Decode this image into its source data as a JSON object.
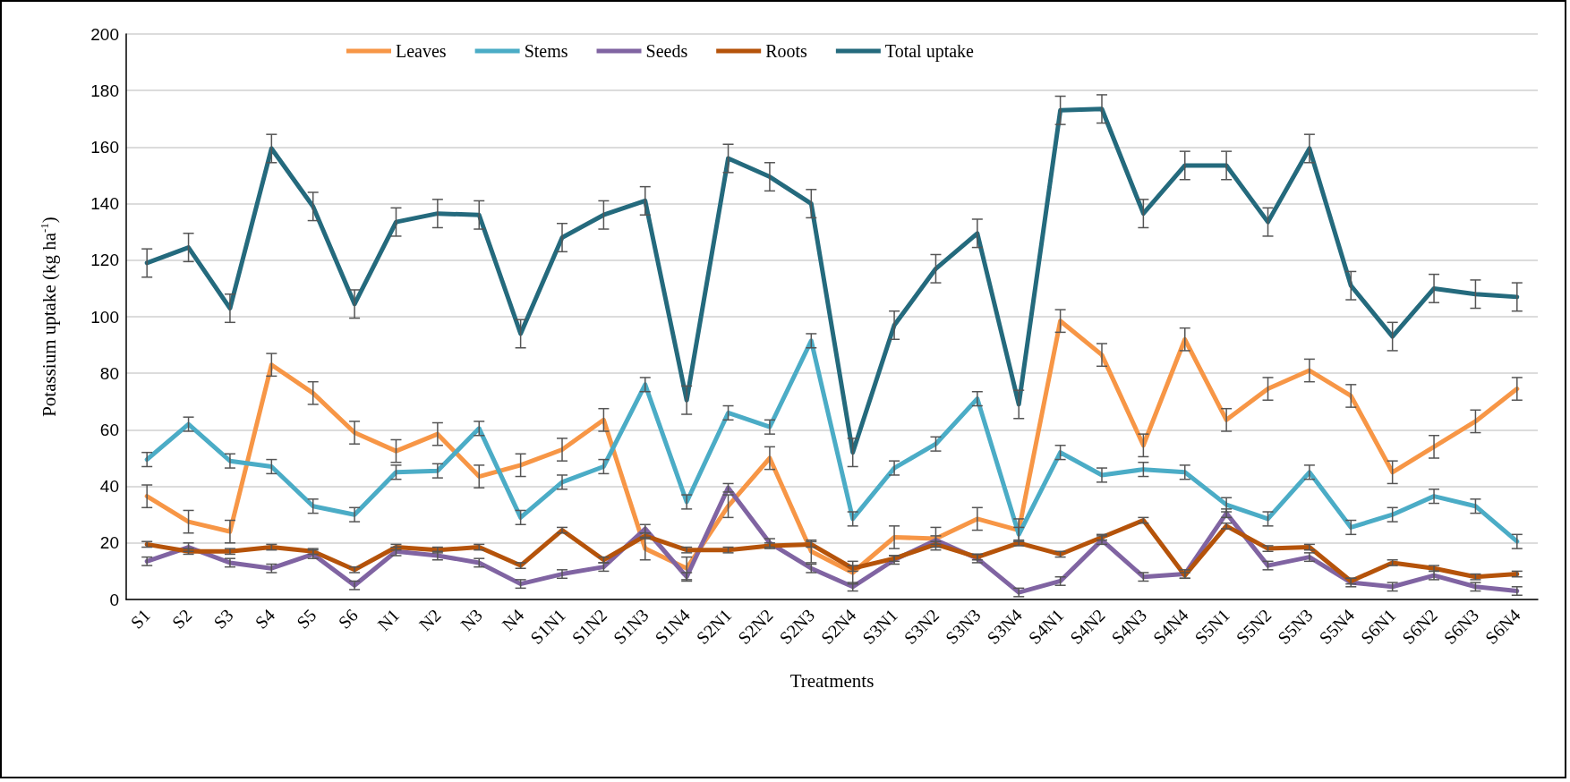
{
  "chart_data": {
    "type": "line",
    "xlabel": "Treatments",
    "ylabel": "Potassium uptake (kg ha$^{-1}$)",
    "categories": [
      "S1",
      "S2",
      "S3",
      "S4",
      "S5",
      "S6",
      "N1",
      "N2",
      "N3",
      "N4",
      "S1N1",
      "S1N2",
      "S1N3",
      "S1N4",
      "S2N1",
      "S2N2",
      "S2N3",
      "S2N4",
      "S3N1",
      "S3N2",
      "S3N3",
      "S3N4",
      "S4N1",
      "S4N2",
      "S4N3",
      "S4N4",
      "S5N1",
      "S5N2",
      "S5N3",
      "S5N4",
      "S6N1",
      "S6N2",
      "S6N3",
      "S6N4"
    ],
    "ylim": [
      0,
      200
    ],
    "yticks": [
      0,
      20,
      40,
      60,
      80,
      100,
      120,
      140,
      160,
      180,
      200
    ],
    "grid": "y",
    "legend": "top",
    "marker": "none",
    "line_style": "solid",
    "series": [
      {
        "name": "Leaves",
        "color": "#f79646",
        "values": [
          36.5,
          27.5,
          24,
          83,
          73,
          59,
          52.5,
          58.5,
          43.5,
          47.5,
          53,
          63.5,
          18,
          11,
          33,
          50,
          17,
          9.5,
          22,
          21.5,
          28.5,
          24.5,
          98.5,
          86.5,
          54.5,
          92,
          63.5,
          74.5,
          81,
          72,
          45,
          54,
          63,
          74.5
        ],
        "errors": [
          4,
          4,
          4,
          4,
          4,
          4,
          4,
          4,
          4,
          4,
          4,
          4,
          4,
          4,
          4,
          4,
          4,
          4,
          4,
          4,
          4,
          4,
          4,
          4,
          4,
          4,
          4,
          4,
          4,
          4,
          4,
          4,
          4,
          4
        ]
      },
      {
        "name": "Stems",
        "color": "#4bacc6",
        "values": [
          49.5,
          62,
          49,
          47,
          33,
          30,
          45,
          45.5,
          60.5,
          29,
          41.5,
          47,
          76,
          34.5,
          66,
          61,
          91.5,
          28.5,
          46.5,
          55,
          71,
          23,
          52,
          44,
          46,
          45,
          33.5,
          28.5,
          45,
          25.5,
          30,
          36.5,
          33,
          20.5
        ],
        "errors": [
          2.5,
          2.5,
          2.5,
          2.5,
          2.5,
          2.5,
          2.5,
          2.5,
          2.5,
          2.5,
          2.5,
          2.5,
          2.5,
          2.5,
          2.5,
          2.5,
          2.5,
          2.5,
          2.5,
          2.5,
          2.5,
          2.5,
          2.5,
          2.5,
          2.5,
          2.5,
          2.5,
          2.5,
          2.5,
          2.5,
          2.5,
          2.5,
          2.5,
          2.5
        ]
      },
      {
        "name": "Seeds",
        "color": "#8064a2",
        "values": [
          13.5,
          18.5,
          13,
          11,
          16,
          5,
          17,
          15.5,
          13,
          5.5,
          9,
          11.5,
          25,
          8,
          39.5,
          20,
          11,
          4.5,
          14,
          21,
          14.5,
          2.5,
          6.5,
          21,
          8,
          9,
          30.5,
          12,
          15,
          6,
          4.5,
          8.5,
          4.5,
          3
        ],
        "errors": [
          1.5,
          1.5,
          1.5,
          1.5,
          1.5,
          1.5,
          1.5,
          1.5,
          1.5,
          1.5,
          1.5,
          1.5,
          1.5,
          1.5,
          1.5,
          1.5,
          1.5,
          1.5,
          1.5,
          1.5,
          1.5,
          1.5,
          1.5,
          1.5,
          1.5,
          1.5,
          1.5,
          1.5,
          1.5,
          1.5,
          1.5,
          1.5,
          1.5,
          1.5
        ]
      },
      {
        "name": "Roots",
        "color": "#b5530a",
        "values": [
          19.5,
          17,
          17,
          18.5,
          17,
          10.5,
          18.5,
          17.5,
          18.5,
          12,
          24.5,
          14,
          22.5,
          17.5,
          17.5,
          19,
          19.5,
          11,
          14.5,
          19.5,
          15,
          20,
          16,
          22,
          28,
          8.5,
          26,
          18,
          18.5,
          6.5,
          13,
          11,
          8,
          9
        ],
        "errors": [
          1,
          1,
          1,
          1,
          1,
          1,
          1,
          1,
          1,
          1,
          1,
          1,
          1,
          1,
          1,
          1,
          1,
          1,
          1,
          1,
          1,
          1,
          1,
          1,
          1,
          1,
          1,
          1,
          1,
          1,
          1,
          1,
          1,
          1
        ]
      },
      {
        "name": "Total uptake",
        "color": "#246a7d",
        "values": [
          119,
          124.5,
          103,
          159.5,
          139,
          104.5,
          133.5,
          136.5,
          136,
          94,
          128,
          136,
          141,
          70.5,
          156,
          149.5,
          140,
          52,
          97,
          117,
          129.5,
          69,
          173,
          173.5,
          136.5,
          153.5,
          153.5,
          133.5,
          159.5,
          111,
          93,
          110,
          108,
          107
        ],
        "errors": [
          5,
          5,
          5,
          5,
          5,
          5,
          5,
          5,
          5,
          5,
          5,
          5,
          5,
          5,
          5,
          5,
          5,
          5,
          5,
          5,
          5,
          5,
          5,
          5,
          5,
          5,
          5,
          5,
          5,
          5,
          5,
          5,
          5,
          5
        ]
      }
    ]
  }
}
